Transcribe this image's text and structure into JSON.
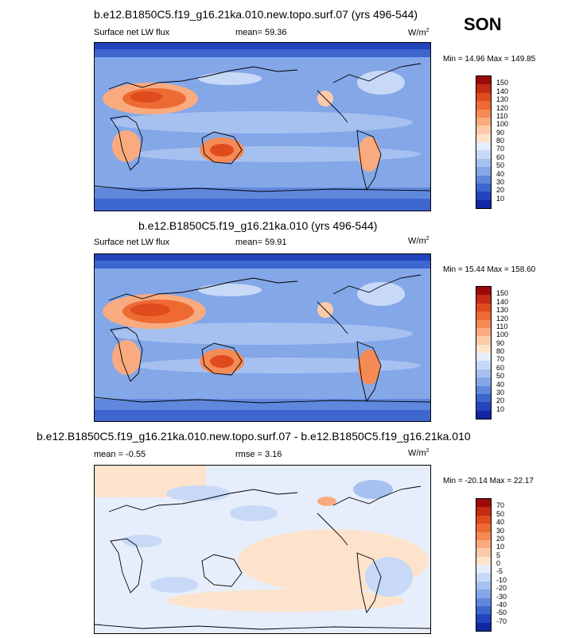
{
  "season": "SON",
  "panels": [
    {
      "title": "b.e12.B1850C5.f19_g16.21ka.010.new.topo.surf.07 (yrs 496-544)",
      "variable": "Surface net LW flux",
      "stat1": "mean=  59.36",
      "stat2": "",
      "units": "W/m",
      "units_sup": "2",
      "minmax": "Min =  14.96 Max = 149.85",
      "colorbar_labels": [
        "150",
        "140",
        "130",
        "120",
        "110",
        "100",
        "90",
        "80",
        "70",
        "60",
        "50",
        "40",
        "30",
        "20",
        "10"
      ],
      "colorbar_colors": [
        "#9b0a0a",
        "#c42a14",
        "#e04b1e",
        "#ee6a33",
        "#f58a55",
        "#f9ab7f",
        "#fccaa8",
        "#fde3cc",
        "#e7eefb",
        "#c7d9f7",
        "#a6c1f0",
        "#84a7e8",
        "#5f88dd",
        "#3d66cf",
        "#2444bd",
        "#1027a1"
      ]
    },
    {
      "title": "b.e12.B1850C5.f19_g16.21ka.010 (yrs 496-544)",
      "variable": "Surface net LW flux",
      "stat1": "mean=  59.91",
      "stat2": "",
      "units": "W/m",
      "units_sup": "2",
      "minmax": "Min =  15.44 Max = 158.60",
      "colorbar_labels": [
        "150",
        "140",
        "130",
        "120",
        "110",
        "100",
        "90",
        "80",
        "70",
        "60",
        "50",
        "40",
        "30",
        "20",
        "10"
      ],
      "colorbar_colors": [
        "#9b0a0a",
        "#c42a14",
        "#e04b1e",
        "#ee6a33",
        "#f58a55",
        "#f9ab7f",
        "#fccaa8",
        "#fde3cc",
        "#e7eefb",
        "#c7d9f7",
        "#a6c1f0",
        "#84a7e8",
        "#5f88dd",
        "#3d66cf",
        "#2444bd",
        "#1027a1"
      ]
    },
    {
      "title": "b.e12.B1850C5.f19_g16.21ka.010.new.topo.surf.07 - b.e12.B1850C5.f19_g16.21ka.010",
      "variable": "",
      "stat1": "mean =  -0.55",
      "stat2": "rmse =   3.16",
      "units": "W/m",
      "units_sup": "2",
      "minmax": "Min = -20.14 Max =  22.17",
      "colorbar_labels": [
        "70",
        "50",
        "40",
        "30",
        "20",
        "10",
        "5",
        "0",
        "-5",
        "-10",
        "-20",
        "-30",
        "-40",
        "-50",
        "-70"
      ],
      "colorbar_colors": [
        "#9b0a0a",
        "#c42a14",
        "#e04b1e",
        "#ee6a33",
        "#f58a55",
        "#f9ab7f",
        "#fccaa8",
        "#fde3cc",
        "#e7eefb",
        "#c7d9f7",
        "#a6c1f0",
        "#84a7e8",
        "#5f88dd",
        "#3d66cf",
        "#2444bd",
        "#1027a1"
      ]
    }
  ]
}
